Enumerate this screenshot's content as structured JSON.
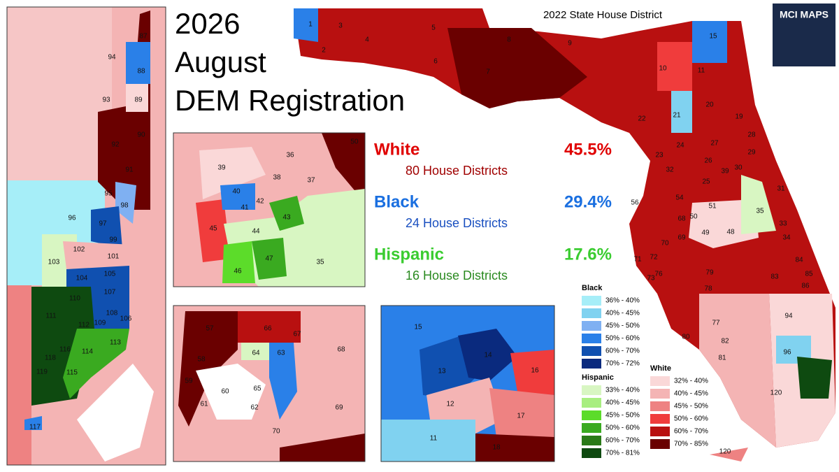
{
  "header": {
    "title_lines": [
      "2026",
      "August",
      "DEM Registration"
    ],
    "subtitle": "2022 State House District",
    "logo": "MCI MAPS"
  },
  "stats": [
    {
      "group": "White",
      "percent": "45.5%",
      "districts": "80 House Districts"
    },
    {
      "group": "Black",
      "percent": "29.4%",
      "districts": "24 House Districts"
    },
    {
      "group": "Hispanic",
      "percent": "17.6%",
      "districts": "16 House Districts"
    }
  ],
  "legend": [
    {
      "title": "Black",
      "items": [
        {
          "label": "36% - 40%",
          "color": "#a6eef8"
        },
        {
          "label": "40% - 45%",
          "color": "#80d2f0"
        },
        {
          "label": "45% - 50%",
          "color": "#7fb0f2"
        },
        {
          "label": "50% - 60%",
          "color": "#2a80e8"
        },
        {
          "label": "60% - 70%",
          "color": "#1050b0"
        },
        {
          "label": "70% - 72%",
          "color": "#0a2a7e"
        }
      ]
    },
    {
      "title": "Hispanic",
      "items": [
        {
          "label": "33% - 40%",
          "color": "#d8f6c2"
        },
        {
          "label": "40% - 45%",
          "color": "#a8ee80"
        },
        {
          "label": "45% - 50%",
          "color": "#5cdc2a"
        },
        {
          "label": "50% - 60%",
          "color": "#3aaa20"
        },
        {
          "label": "60% - 70%",
          "color": "#2a7a18"
        },
        {
          "label": "70% - 81%",
          "color": "#0e4a10"
        }
      ]
    },
    {
      "title": "White",
      "items": [
        {
          "label": "32% - 40%",
          "color": "#fad8d8"
        },
        {
          "label": "40% - 45%",
          "color": "#f4b4b4"
        },
        {
          "label": "45% - 50%",
          "color": "#ee8282"
        },
        {
          "label": "50% - 60%",
          "color": "#f03c3c"
        },
        {
          "label": "60% - 70%",
          "color": "#b81010"
        },
        {
          "label": "70% - 85%",
          "color": "#6a0000"
        }
      ]
    }
  ],
  "panels": {
    "southeast": [
      "87",
      "94",
      "88",
      "93",
      "89",
      "90",
      "92",
      "91",
      "95",
      "98",
      "96",
      "97",
      "99",
      "102",
      "101",
      "103",
      "105",
      "104",
      "107",
      "110",
      "108",
      "111",
      "112",
      "109",
      "106",
      "113",
      "116",
      "114",
      "118",
      "119",
      "115",
      "117"
    ],
    "orlando": [
      "50",
      "36",
      "39",
      "38",
      "37",
      "40",
      "42",
      "41",
      "43",
      "45",
      "44",
      "47",
      "46",
      "35"
    ],
    "tampa": [
      "66",
      "57",
      "67",
      "68",
      "64",
      "63",
      "58",
      "59",
      "60",
      "61",
      "65",
      "62",
      "69",
      "70"
    ],
    "jacksonville": [
      "15",
      "14",
      "13",
      "16",
      "12",
      "17",
      "11",
      "18"
    ],
    "state": [
      "1",
      "2",
      "3",
      "4",
      "5",
      "6",
      "7",
      "8",
      "9",
      "10",
      "11",
      "15",
      "19",
      "20",
      "21",
      "22",
      "23",
      "24",
      "25",
      "26",
      "27",
      "28",
      "29",
      "30",
      "31",
      "32",
      "33",
      "34",
      "35",
      "39",
      "48",
      "49",
      "50",
      "51",
      "54",
      "56",
      "68",
      "69",
      "70",
      "71",
      "72",
      "73",
      "76",
      "77",
      "78",
      "79",
      "80",
      "81",
      "82",
      "83",
      "84",
      "85",
      "86",
      "94",
      "96",
      "120",
      "120"
    ]
  }
}
